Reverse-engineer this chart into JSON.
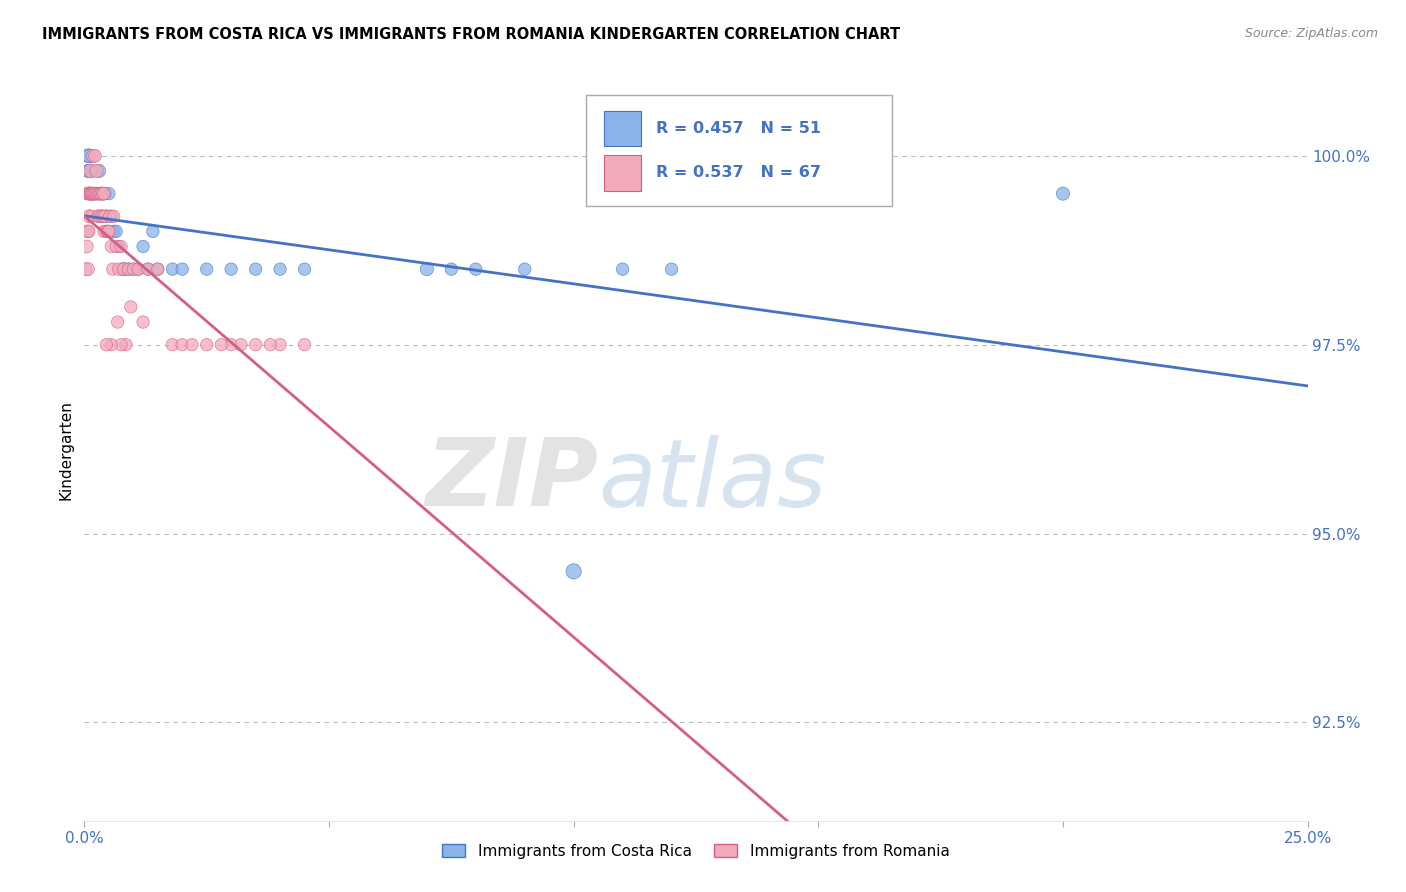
{
  "title": "IMMIGRANTS FROM COSTA RICA VS IMMIGRANTS FROM ROMANIA KINDERGARTEN CORRELATION CHART",
  "source": "Source: ZipAtlas.com",
  "ylabel_label": "Kindergarten",
  "xmin": 0.0,
  "xmax": 25.0,
  "ymin": 91.2,
  "ymax": 101.0,
  "yticks": [
    92.5,
    95.0,
    97.5,
    100.0
  ],
  "legend_label1": "Immigrants from Costa Rica",
  "legend_label2": "Immigrants from Romania",
  "R1": 0.457,
  "N1": 51,
  "R2": 0.537,
  "N2": 67,
  "color_blue": "#8AB4E8",
  "color_pink": "#F2AABB",
  "color_blue_dark": "#4472C4",
  "color_pink_dark": "#D45F80",
  "watermark_zip": "ZIP",
  "watermark_atlas": "atlas",
  "costa_rica_x": [
    0.05,
    0.07,
    0.08,
    0.1,
    0.1,
    0.12,
    0.13,
    0.14,
    0.15,
    0.18,
    0.2,
    0.22,
    0.25,
    0.28,
    0.3,
    0.32,
    0.35,
    0.35,
    0.38,
    0.4,
    0.42,
    0.45,
    0.48,
    0.5,
    0.55,
    0.6,
    0.65,
    0.7,
    0.8,
    0.9,
    1.0,
    1.1,
    1.2,
    1.3,
    1.4,
    1.5,
    1.8,
    2.0,
    2.5,
    3.0,
    3.5,
    4.0,
    4.5,
    7.0,
    7.5,
    8.0,
    9.0,
    10.0,
    11.0,
    12.0,
    20.0
  ],
  "costa_rica_y": [
    99.5,
    99.8,
    100.0,
    99.8,
    100.0,
    99.5,
    99.8,
    99.5,
    99.5,
    99.5,
    99.5,
    99.5,
    99.5,
    99.5,
    99.8,
    99.5,
    99.5,
    99.2,
    99.5,
    99.5,
    99.5,
    99.2,
    99.0,
    99.5,
    99.2,
    99.0,
    99.0,
    98.8,
    98.5,
    98.5,
    98.5,
    98.5,
    98.8,
    98.5,
    99.0,
    98.5,
    98.5,
    98.5,
    98.5,
    98.5,
    98.5,
    98.5,
    98.5,
    98.5,
    98.5,
    98.5,
    98.5,
    94.5,
    98.5,
    98.5,
    99.5
  ],
  "romania_x": [
    0.03,
    0.05,
    0.06,
    0.07,
    0.08,
    0.09,
    0.1,
    0.1,
    0.12,
    0.12,
    0.13,
    0.14,
    0.15,
    0.16,
    0.18,
    0.18,
    0.2,
    0.22,
    0.22,
    0.25,
    0.25,
    0.28,
    0.28,
    0.3,
    0.3,
    0.32,
    0.35,
    0.35,
    0.38,
    0.38,
    0.4,
    0.4,
    0.42,
    0.45,
    0.48,
    0.5,
    0.52,
    0.55,
    0.58,
    0.6,
    0.65,
    0.7,
    0.75,
    0.8,
    0.9,
    1.0,
    1.1,
    1.3,
    1.5,
    1.8,
    2.0,
    2.5,
    3.0,
    3.5,
    4.0,
    4.5,
    3.8,
    3.2,
    2.8,
    2.2,
    1.2,
    0.95,
    0.85,
    0.75,
    0.68,
    0.55,
    0.45
  ],
  "romania_y": [
    98.5,
    98.8,
    99.0,
    98.5,
    99.0,
    99.0,
    99.2,
    99.5,
    99.5,
    99.8,
    99.5,
    99.5,
    99.2,
    99.5,
    99.5,
    100.0,
    99.5,
    100.0,
    99.5,
    99.5,
    99.8,
    99.2,
    99.5,
    99.5,
    99.2,
    99.5,
    99.2,
    99.5,
    99.2,
    99.5,
    99.0,
    99.5,
    99.2,
    99.0,
    99.0,
    99.0,
    99.2,
    98.8,
    98.5,
    99.2,
    98.8,
    98.5,
    98.8,
    98.5,
    98.5,
    98.5,
    98.5,
    98.5,
    98.5,
    97.5,
    97.5,
    97.5,
    97.5,
    97.5,
    97.5,
    97.5,
    97.5,
    97.5,
    97.5,
    97.5,
    97.8,
    98.0,
    97.5,
    97.5,
    97.8,
    97.5,
    97.5
  ],
  "cr_sizes": [
    80,
    90,
    100,
    85,
    95,
    80,
    90,
    85,
    80,
    85,
    80,
    85,
    80,
    80,
    90,
    80,
    85,
    80,
    80,
    80,
    80,
    85,
    80,
    80,
    80,
    80,
    80,
    80,
    90,
    85,
    80,
    80,
    80,
    80,
    80,
    80,
    80,
    80,
    80,
    80,
    80,
    80,
    80,
    90,
    80,
    80,
    80,
    120,
    80,
    80,
    90
  ],
  "ro_sizes": [
    80,
    85,
    80,
    90,
    85,
    80,
    90,
    95,
    80,
    100,
    85,
    80,
    80,
    85,
    80,
    90,
    80,
    85,
    80,
    85,
    90,
    80,
    85,
    80,
    85,
    80,
    85,
    90,
    80,
    85,
    80,
    85,
    80,
    80,
    80,
    80,
    80,
    80,
    80,
    80,
    80,
    80,
    80,
    80,
    80,
    80,
    80,
    80,
    80,
    80,
    80,
    80,
    80,
    80,
    80,
    80,
    80,
    80,
    80,
    80,
    80,
    80,
    80,
    80,
    80,
    80,
    80
  ]
}
